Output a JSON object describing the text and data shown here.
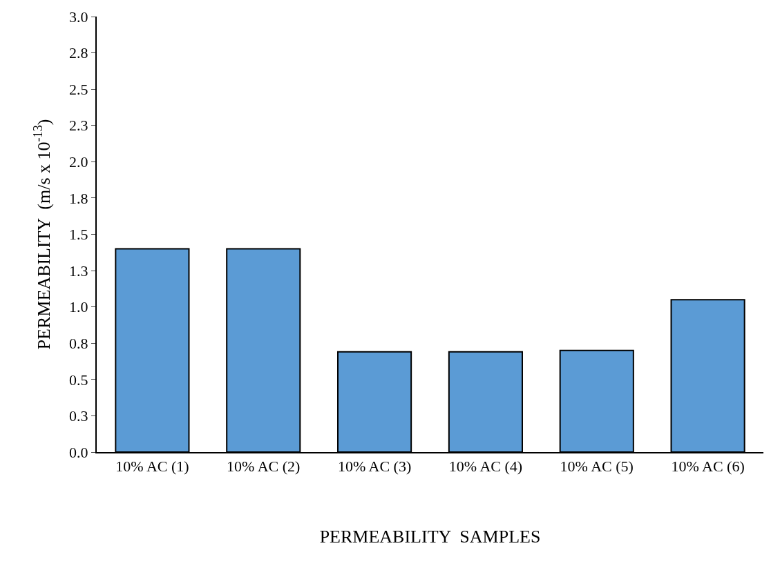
{
  "chart_data": {
    "type": "bar",
    "xlabel": "PERMEABILITY  SAMPLES",
    "ylabel": "PERMEABILITY  (m/s x 10$^{-13}$)",
    "categories": [
      "10% AC (1)",
      "10% AC (2)",
      "10% AC (3)",
      "10% AC (4)",
      "10% AC (5)",
      "10% AC (6)"
    ],
    "values": [
      1.4,
      1.4,
      0.69,
      0.69,
      0.7,
      1.05
    ],
    "color": "#5b9bd5",
    "ylim": [
      0,
      3
    ],
    "yticks": [
      {
        "value": 0,
        "label": "0.0"
      },
      {
        "value": 0.25,
        "label": "0.3"
      },
      {
        "value": 0.5,
        "label": "0.5"
      },
      {
        "value": 0.75,
        "label": "0.8"
      },
      {
        "value": 1,
        "label": "1.0"
      },
      {
        "value": 1.25,
        "label": "1.3"
      },
      {
        "value": 1.5,
        "label": "1.5"
      },
      {
        "value": 1.75,
        "label": "1.8"
      },
      {
        "value": 2,
        "label": "2.0"
      },
      {
        "value": 2.25,
        "label": "2.3"
      },
      {
        "value": 2.5,
        "label": "2.5"
      },
      {
        "value": 2.75,
        "label": "2.8"
      },
      {
        "value": 3,
        "label": "3.0"
      }
    ],
    "grid": false
  }
}
